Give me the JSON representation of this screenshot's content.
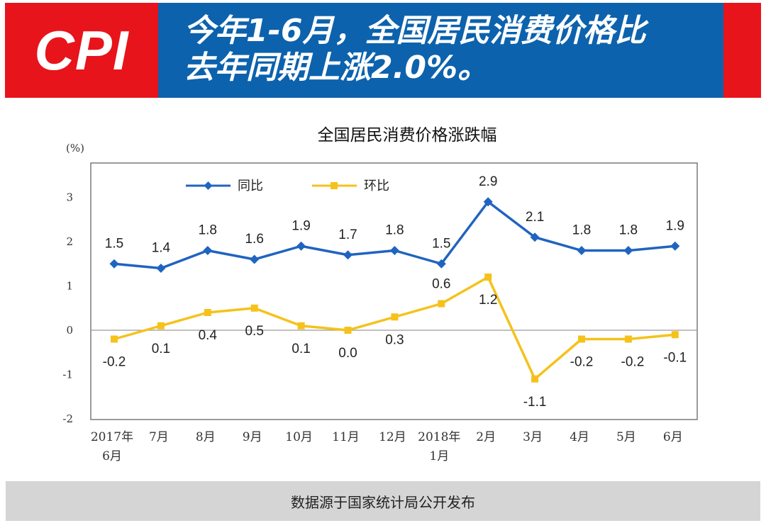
{
  "banner": {
    "logo_text": "CPI",
    "headline_line1": "今年1-6月，全国居民消费价格比",
    "headline_line2": "去年同期上涨2.0%。",
    "colors": {
      "red": "#e8141b",
      "blue": "#0c62ad"
    }
  },
  "chart_data": {
    "type": "line",
    "title": "全国居民消费价格涨跌幅",
    "ylabel": "(%)",
    "xlabel": "",
    "ylim": [
      -2,
      3
    ],
    "yticks": [
      3,
      2,
      1,
      0,
      -1,
      -2
    ],
    "grid": false,
    "legend_position": "top-left inside",
    "categories": [
      [
        "2017年",
        "6月"
      ],
      [
        "7月"
      ],
      [
        "8月"
      ],
      [
        "9月"
      ],
      [
        "10月"
      ],
      [
        "11月"
      ],
      [
        "12月"
      ],
      [
        "2018年",
        "1月"
      ],
      [
        "2月"
      ],
      [
        "3月"
      ],
      [
        "4月"
      ],
      [
        "5月"
      ],
      [
        "6月"
      ]
    ],
    "series": [
      {
        "name": "同比",
        "color": "#1f64c0",
        "values": [
          1.5,
          1.4,
          1.8,
          1.6,
          1.9,
          1.7,
          1.8,
          1.5,
          2.9,
          2.1,
          1.8,
          1.8,
          1.9
        ],
        "labels": [
          "1.5",
          "1.4",
          "1.8",
          "1.6",
          "1.9",
          "1.7",
          "1.8",
          "1.5",
          "2.9",
          "2.1",
          "1.8",
          "1.8",
          "1.9"
        ]
      },
      {
        "name": "环比",
        "color": "#f5c21b",
        "values": [
          -0.2,
          0.1,
          0.4,
          0.5,
          0.1,
          0.0,
          0.3,
          0.6,
          1.2,
          -1.1,
          -0.2,
          -0.2,
          -0.1
        ],
        "labels": [
          "-0.2",
          "0.1",
          "0.4",
          "0.5",
          "0.1",
          "0.0",
          "0.3",
          "0.6",
          "1.2",
          "-1.1",
          "-0.2",
          "-0.2",
          "-0.1"
        ]
      }
    ]
  },
  "footer": {
    "source_text": "数据源于国家统计局公开发布"
  }
}
